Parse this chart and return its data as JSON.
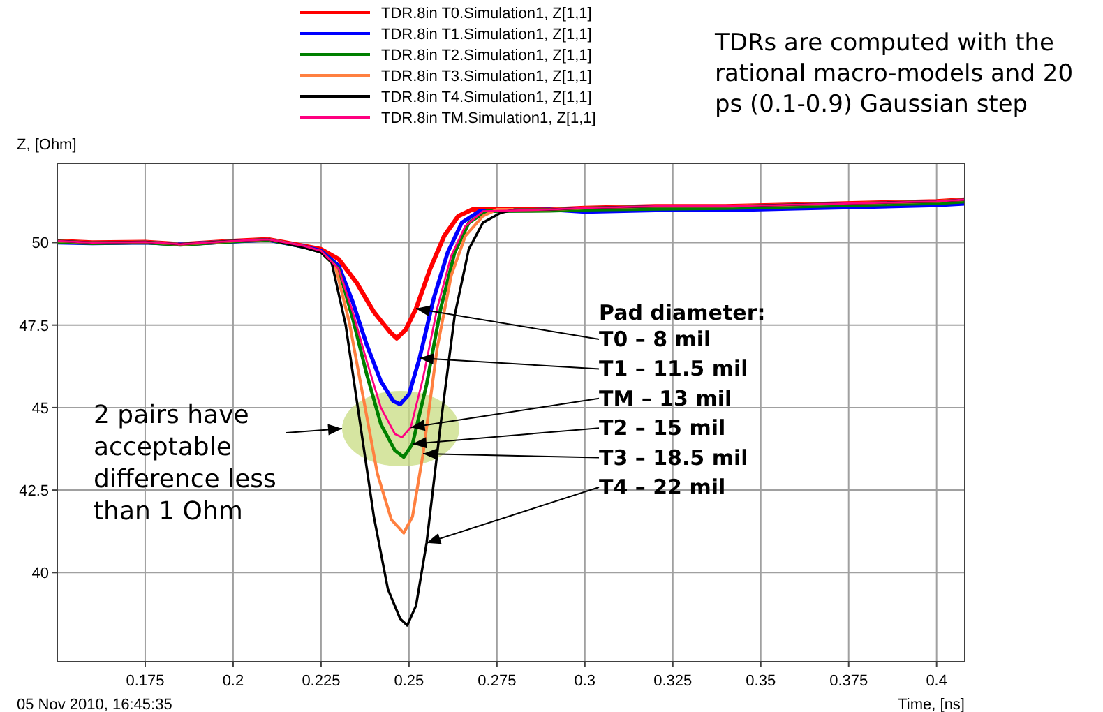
{
  "chart_data": {
    "type": "line",
    "xlabel": "Time, [ns]",
    "ylabel": "Z, [Ohm]",
    "xlim": [
      0.15,
      0.408
    ],
    "ylim": [
      37.3,
      52.4
    ],
    "xticks": [
      0.175,
      0.2,
      0.225,
      0.25,
      0.275,
      0.3,
      0.325,
      0.35,
      0.375,
      0.4
    ],
    "yticks": [
      40,
      42.5,
      45,
      47.5,
      50
    ],
    "grid": true,
    "legend": "top",
    "marker": "none",
    "line_style": "solid",
    "series": [
      {
        "name": "TDR.8in T0.Simulation1, Z[1,1]",
        "color": "#ff0000",
        "x": [
          0.15,
          0.16,
          0.175,
          0.185,
          0.2,
          0.21,
          0.22,
          0.225,
          0.23,
          0.235,
          0.24,
          0.2445,
          0.2465,
          0.249,
          0.252,
          0.256,
          0.26,
          0.264,
          0.268,
          0.29,
          0.3,
          0.32,
          0.34,
          0.36,
          0.38,
          0.4,
          0.408
        ],
        "values": [
          50.05,
          50.0,
          50.02,
          49.95,
          50.05,
          50.1,
          49.9,
          49.8,
          49.5,
          48.8,
          47.9,
          47.3,
          47.1,
          47.35,
          48.0,
          49.2,
          50.2,
          50.8,
          51.0,
          51.0,
          51.05,
          51.1,
          51.1,
          51.15,
          51.2,
          51.25,
          51.3
        ]
      },
      {
        "name": "TDR.8in T1.Simulation1, Z[1,1]",
        "color": "#0000ff",
        "x": [
          0.15,
          0.16,
          0.175,
          0.185,
          0.2,
          0.21,
          0.22,
          0.225,
          0.23,
          0.234,
          0.238,
          0.242,
          0.2455,
          0.2475,
          0.25,
          0.253,
          0.257,
          0.261,
          0.265,
          0.27,
          0.29,
          0.3,
          0.32,
          0.34,
          0.36,
          0.38,
          0.4,
          0.408
        ],
        "values": [
          50.0,
          49.98,
          50.0,
          49.95,
          50.03,
          50.08,
          49.88,
          49.75,
          49.3,
          48.2,
          46.9,
          45.8,
          45.2,
          45.1,
          45.4,
          46.5,
          48.3,
          49.7,
          50.6,
          50.95,
          51.0,
          50.93,
          50.98,
          50.98,
          51.03,
          51.08,
          51.13,
          51.18
        ]
      },
      {
        "name": "TDR.8in T2.Simulation1, Z[1,1]",
        "color": "#008000",
        "x": [
          0.15,
          0.16,
          0.175,
          0.185,
          0.2,
          0.21,
          0.22,
          0.225,
          0.23,
          0.234,
          0.238,
          0.242,
          0.246,
          0.2485,
          0.251,
          0.255,
          0.259,
          0.263,
          0.267,
          0.272,
          0.29,
          0.3,
          0.32,
          0.34,
          0.36,
          0.38,
          0.4,
          0.408
        ],
        "values": [
          50.02,
          49.98,
          50.0,
          49.93,
          50.03,
          50.08,
          49.87,
          49.72,
          49.2,
          47.7,
          46.0,
          44.5,
          43.7,
          43.5,
          43.9,
          45.7,
          48.0,
          49.7,
          50.6,
          50.95,
          50.96,
          50.99,
          51.02,
          51.04,
          51.09,
          51.14,
          51.19,
          51.24
        ]
      },
      {
        "name": "TDR.8in T3.Simulation1, Z[1,1]",
        "color": "#ff8040",
        "x": [
          0.15,
          0.16,
          0.175,
          0.185,
          0.2,
          0.21,
          0.22,
          0.225,
          0.229,
          0.233,
          0.237,
          0.241,
          0.245,
          0.2485,
          0.251,
          0.254,
          0.258,
          0.262,
          0.266,
          0.271,
          0.275,
          0.29,
          0.3,
          0.32,
          0.34,
          0.36,
          0.38,
          0.4,
          0.408
        ],
        "values": [
          50.05,
          50.0,
          50.02,
          49.95,
          50.05,
          50.1,
          49.88,
          49.72,
          49.3,
          47.6,
          45.3,
          43.0,
          41.6,
          41.2,
          41.7,
          43.6,
          46.8,
          49.0,
          50.2,
          50.8,
          51.0,
          51.0,
          51.05,
          51.1,
          51.1,
          51.15,
          51.2,
          51.25,
          51.3
        ]
      },
      {
        "name": "TDR.8in T4.Simulation1, Z[1,1]",
        "color": "#000000",
        "x": [
          0.15,
          0.16,
          0.175,
          0.185,
          0.2,
          0.21,
          0.22,
          0.225,
          0.228,
          0.232,
          0.236,
          0.24,
          0.244,
          0.2475,
          0.2495,
          0.252,
          0.255,
          0.259,
          0.263,
          0.267,
          0.271,
          0.276,
          0.28,
          0.29,
          0.3,
          0.32,
          0.34,
          0.36,
          0.38,
          0.4,
          0.408
        ],
        "values": [
          50.05,
          50.0,
          50.02,
          49.95,
          50.05,
          50.1,
          49.85,
          49.7,
          49.4,
          47.5,
          44.6,
          41.7,
          39.5,
          38.6,
          38.4,
          39.0,
          40.9,
          44.5,
          47.8,
          49.8,
          50.6,
          50.9,
          51.0,
          51.0,
          51.05,
          51.1,
          51.1,
          51.15,
          51.2,
          51.25,
          51.3
        ]
      },
      {
        "name": "TDR.8in TM.Simulation1, Z[1,1]",
        "color": "#ff0080",
        "x": [
          0.15,
          0.16,
          0.175,
          0.185,
          0.2,
          0.21,
          0.22,
          0.225,
          0.23,
          0.234,
          0.238,
          0.242,
          0.246,
          0.248,
          0.2505,
          0.254,
          0.258,
          0.262,
          0.266,
          0.271,
          0.29,
          0.3,
          0.32,
          0.34,
          0.36,
          0.38,
          0.4,
          0.408
        ],
        "values": [
          50.05,
          50.0,
          50.02,
          49.95,
          50.05,
          50.1,
          49.9,
          49.75,
          49.2,
          47.9,
          46.4,
          45.0,
          44.2,
          44.1,
          44.4,
          45.9,
          48.0,
          49.6,
          50.5,
          50.95,
          51.0,
          51.05,
          51.1,
          51.1,
          51.15,
          51.2,
          51.25,
          51.3
        ]
      }
    ],
    "annotations": [
      "TDRs are computed with the rational macro-models and 20 ps (0.1-0.9) Gaussian step",
      "05 Nov 2010, 16:45:35",
      "2 pairs have acceptable difference less than 1 Ohm",
      "Pad diameter:",
      {
        "text": "T0 – 8 mil",
        "x": 0.252,
        "y": 48.0
      },
      {
        "text": "T1 – 11.5 mil",
        "x": 0.253,
        "y": 46.5
      },
      {
        "text": "TM – 13 mil",
        "x": 0.2505,
        "y": 44.4
      },
      {
        "text": "T2 – 15 mil",
        "x": 0.251,
        "y": 43.9
      },
      {
        "text": "T3 – 18.5 mil",
        "x": 0.254,
        "y": 43.6
      },
      {
        "text": "T4 – 22 mil",
        "x": 0.255,
        "y": 40.9
      }
    ]
  }
}
